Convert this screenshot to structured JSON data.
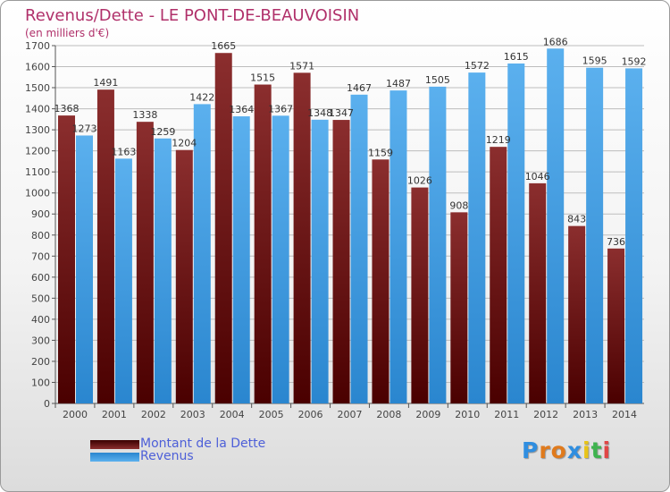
{
  "title": "Revenus/Dette - LE PONT-DE-BEAUVOISIN",
  "subtitle": "(en milliers d'€)",
  "legend": {
    "items": [
      {
        "label": "Montant de la Dette",
        "color": "#7a1010"
      },
      {
        "label": "Revenus",
        "color": "#3b9ee5"
      }
    ]
  },
  "logo": {
    "letters": [
      "P",
      "r",
      "o",
      "x",
      "i",
      "t",
      "i"
    ],
    "colors": [
      "#2f8ee0",
      "#e07a1c",
      "#e07a1c",
      "#2f8ee0",
      "#e8c418",
      "#3fb34f",
      "#e04646"
    ]
  },
  "colors": {
    "dette_top": "#8b2e2e",
    "dette_bottom": "#4a0000",
    "revenus_top": "#5bb0ee",
    "revenus_bottom": "#2a86cf",
    "grid": "#bdbdbd",
    "axis": "#555555"
  },
  "chart_data": {
    "type": "bar",
    "title": "Revenus/Dette - LE PONT-DE-BEAUVOISIN",
    "ylabel": "(en milliers d'€)",
    "ylim": [
      0,
      1700
    ],
    "yticks": [
      0,
      100,
      200,
      300,
      400,
      500,
      600,
      700,
      800,
      900,
      1000,
      1100,
      1200,
      1300,
      1400,
      1500,
      1600,
      1700
    ],
    "grid": true,
    "legend_position": "bottom-left",
    "categories": [
      "2000",
      "2001",
      "2002",
      "2003",
      "2004",
      "2005",
      "2006",
      "2007",
      "2008",
      "2009",
      "2010",
      "2011",
      "2012",
      "2013",
      "2014"
    ],
    "series": [
      {
        "name": "Montant de la Dette",
        "values": [
          1368,
          1491,
          1338,
          1204,
          1665,
          1515,
          1571,
          1347,
          1159,
          1026,
          908,
          1219,
          1046,
          843,
          736
        ],
        "labels": [
          "1368",
          "1491",
          "1338",
          "1204",
          "1665",
          "1515",
          "1571",
          "1347",
          "1159",
          "1026",
          "908",
          "1219",
          "1046",
          "843",
          "736"
        ]
      },
      {
        "name": "Revenus",
        "values": [
          1273,
          1163,
          1259,
          1422,
          1364,
          1367,
          1348,
          1467,
          1487,
          1505,
          1572,
          1615,
          1686,
          1595,
          1592
        ],
        "labels": [
          "1273",
          "1163",
          "1259",
          "1422",
          "1364",
          "1367",
          "1348",
          "1467",
          "1487",
          "1505",
          "1572",
          "1615",
          "1686",
          "1595",
          "1592"
        ]
      }
    ]
  }
}
